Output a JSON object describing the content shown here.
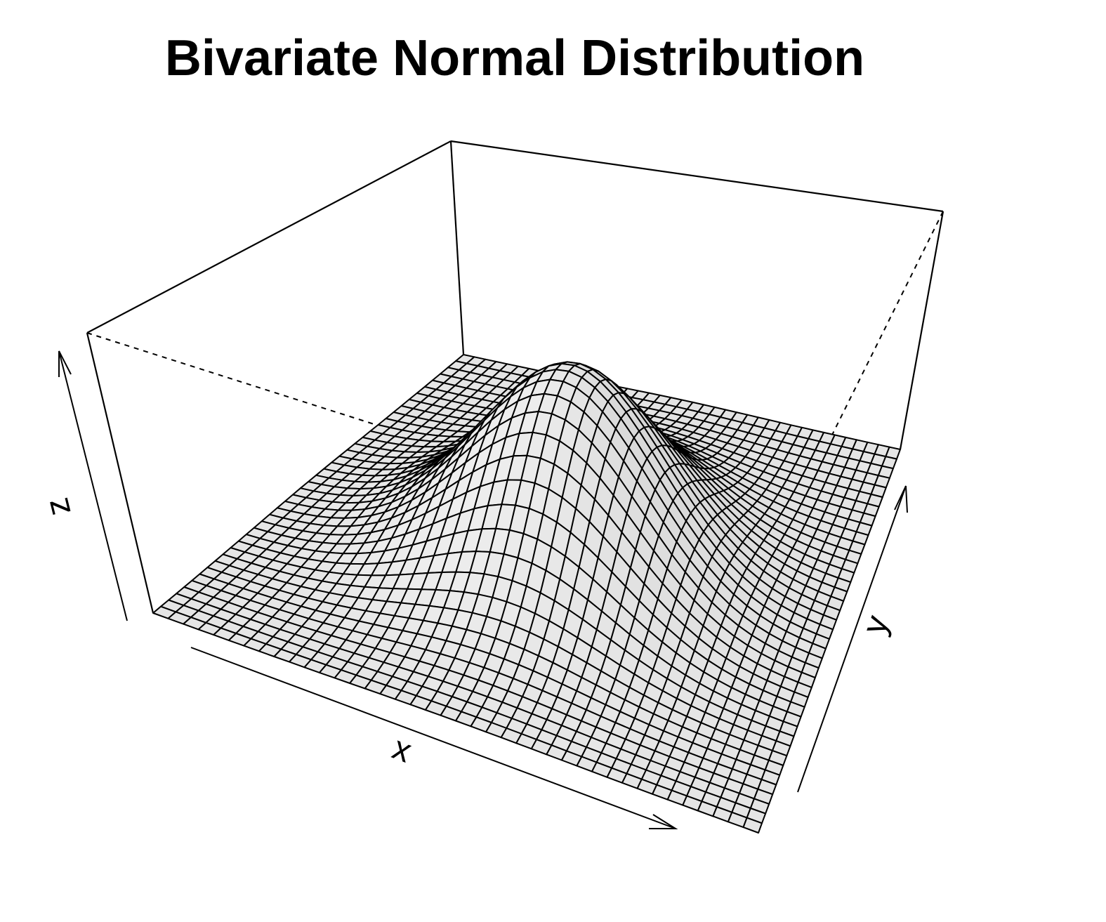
{
  "chart_data": {
    "type": "surface",
    "title": "Bivariate Normal Distribution",
    "xlabel": "x",
    "ylabel": "y",
    "zlabel": "z",
    "function": "bivariate normal density, mean 0, standard deviation 1",
    "x_range": [
      -3,
      3
    ],
    "y_range": [
      -3,
      3
    ],
    "grid_points": 41,
    "peak_z": 0.159,
    "ticks": false,
    "box": true,
    "shade": true,
    "surface_color": "#eeeeee",
    "line_color": "#000000"
  }
}
